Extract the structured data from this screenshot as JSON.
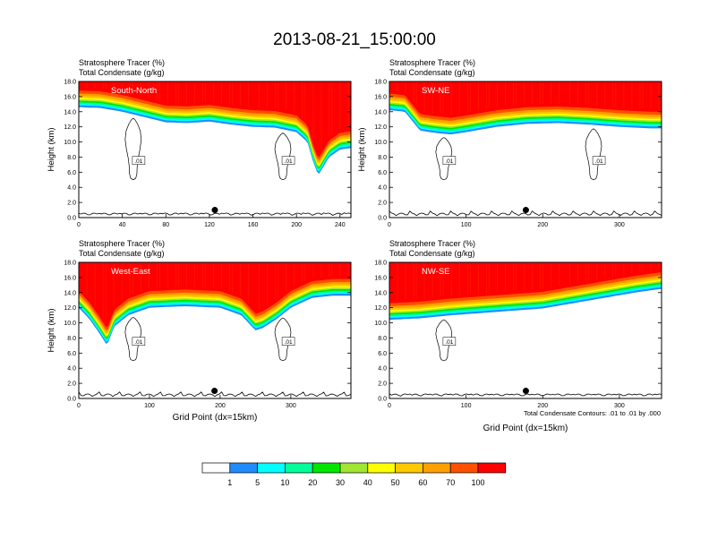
{
  "figure": {
    "title": "2013-08-21_15:00:00",
    "contour_note": "Total Condensate Contours: .01 to .01 by .000"
  },
  "colorbar": {
    "levels": [
      "1",
      "5",
      "10",
      "20",
      "30",
      "40",
      "50",
      "60",
      "70",
      "100"
    ],
    "colors": [
      "#ffffff",
      "#1e8cff",
      "#00ffff",
      "#00ff99",
      "#00e600",
      "#a0e632",
      "#ffff00",
      "#ffc800",
      "#ffa000",
      "#ff5000",
      "#ff0000"
    ]
  },
  "chart_data": [
    {
      "type": "heatmap",
      "panel_label": "South-North",
      "header_line1": "Stratosphere Tracer   (%)",
      "header_line2": "Total Condensate   (g/kg)",
      "ylabel": "Height (km)",
      "xlabel": "",
      "xlim": [
        0,
        250
      ],
      "ylim": [
        0,
        18
      ],
      "xticks": [
        0,
        40,
        80,
        120,
        160,
        200,
        240
      ],
      "yticks": [
        "0.0",
        "2.0",
        "4.0",
        "6.0",
        "8.0",
        "10.0",
        "12.0",
        "14.0",
        "16.0",
        "18.0"
      ],
      "contour_labels": [
        ".01",
        ".01"
      ],
      "boundary_x": [
        0,
        20,
        40,
        60,
        80,
        100,
        120,
        140,
        160,
        180,
        200,
        210,
        215,
        220,
        230,
        240,
        250
      ],
      "boundary_y": [
        14.6,
        14.5,
        14.0,
        13.3,
        12.6,
        12.5,
        12.7,
        12.3,
        12.0,
        11.9,
        11.3,
        10.0,
        7.5,
        5.6,
        8.0,
        9.0,
        9.2
      ],
      "marker": {
        "x": 125,
        "y": 1.0
      }
    },
    {
      "type": "heatmap",
      "panel_label": "SW-NE",
      "header_line1": "Stratosphere Tracer   (%)",
      "header_line2": "Total Condensate   (g/kg)",
      "ylabel": "Height (km)",
      "xlabel": "",
      "xlim": [
        0,
        355
      ],
      "ylim": [
        0,
        18
      ],
      "xticks": [
        0,
        100,
        200,
        300
      ],
      "yticks": [
        "0.0",
        "2.0",
        "4.0",
        "6.0",
        "8.0",
        "10.0",
        "12.0",
        "14.0",
        "16.0",
        "18.0"
      ],
      "contour_labels": [
        ".01",
        ".01"
      ],
      "boundary_x": [
        0,
        20,
        40,
        60,
        80,
        100,
        140,
        180,
        220,
        260,
        300,
        340,
        355
      ],
      "boundary_y": [
        14.2,
        14.0,
        11.5,
        11.2,
        11.0,
        11.3,
        12.0,
        12.4,
        12.5,
        12.3,
        12.0,
        11.8,
        11.8
      ],
      "marker": {
        "x": 178,
        "y": 1.0
      }
    },
    {
      "type": "heatmap",
      "panel_label": "West-East",
      "header_line1": "Stratosphere Tracer   (%)",
      "header_line2": "Total Condensate   (g/kg)",
      "ylabel": "Height (km)",
      "xlabel": "Grid Point (dx=15km)",
      "xlim": [
        0,
        385
      ],
      "ylim": [
        0,
        18
      ],
      "xticks": [
        0,
        100,
        200,
        300
      ],
      "yticks": [
        "0.0",
        "2.0",
        "4.0",
        "6.0",
        "8.0",
        "10.0",
        "12.0",
        "14.0",
        "16.0",
        "18.0"
      ],
      "contour_labels": [
        ".01",
        ".01"
      ],
      "boundary_x": [
        0,
        15,
        30,
        40,
        50,
        70,
        100,
        150,
        200,
        230,
        250,
        260,
        280,
        300,
        330,
        360,
        385
      ],
      "boundary_y": [
        12.0,
        10.5,
        8.5,
        7.0,
        9.5,
        11.0,
        12.0,
        12.2,
        12.0,
        11.0,
        9.0,
        9.3,
        10.5,
        12.0,
        13.3,
        13.6,
        13.6
      ],
      "marker": {
        "x": 192,
        "y": 1.0
      }
    },
    {
      "type": "heatmap",
      "panel_label": "NW-SE",
      "header_line1": "Stratosphere Tracer   (%)",
      "header_line2": "Total Condensate   (g/kg)",
      "ylabel": "",
      "xlabel": "Grid Point (dx=15km)",
      "xlim": [
        0,
        355
      ],
      "ylim": [
        0,
        18
      ],
      "xticks": [
        0,
        100,
        200,
        300
      ],
      "yticks": [
        "0.0",
        "2.0",
        "4.0",
        "6.0",
        "8.0",
        "10.0",
        "12.0",
        "14.0",
        "16.0",
        "18.0"
      ],
      "contour_labels": [
        ".01"
      ],
      "boundary_x": [
        0,
        40,
        80,
        120,
        160,
        200,
        240,
        280,
        320,
        355
      ],
      "boundary_y": [
        10.4,
        10.6,
        11.0,
        11.3,
        11.6,
        11.9,
        12.6,
        13.3,
        14.0,
        14.5
      ],
      "marker": {
        "x": 178,
        "y": 1.0
      }
    }
  ]
}
